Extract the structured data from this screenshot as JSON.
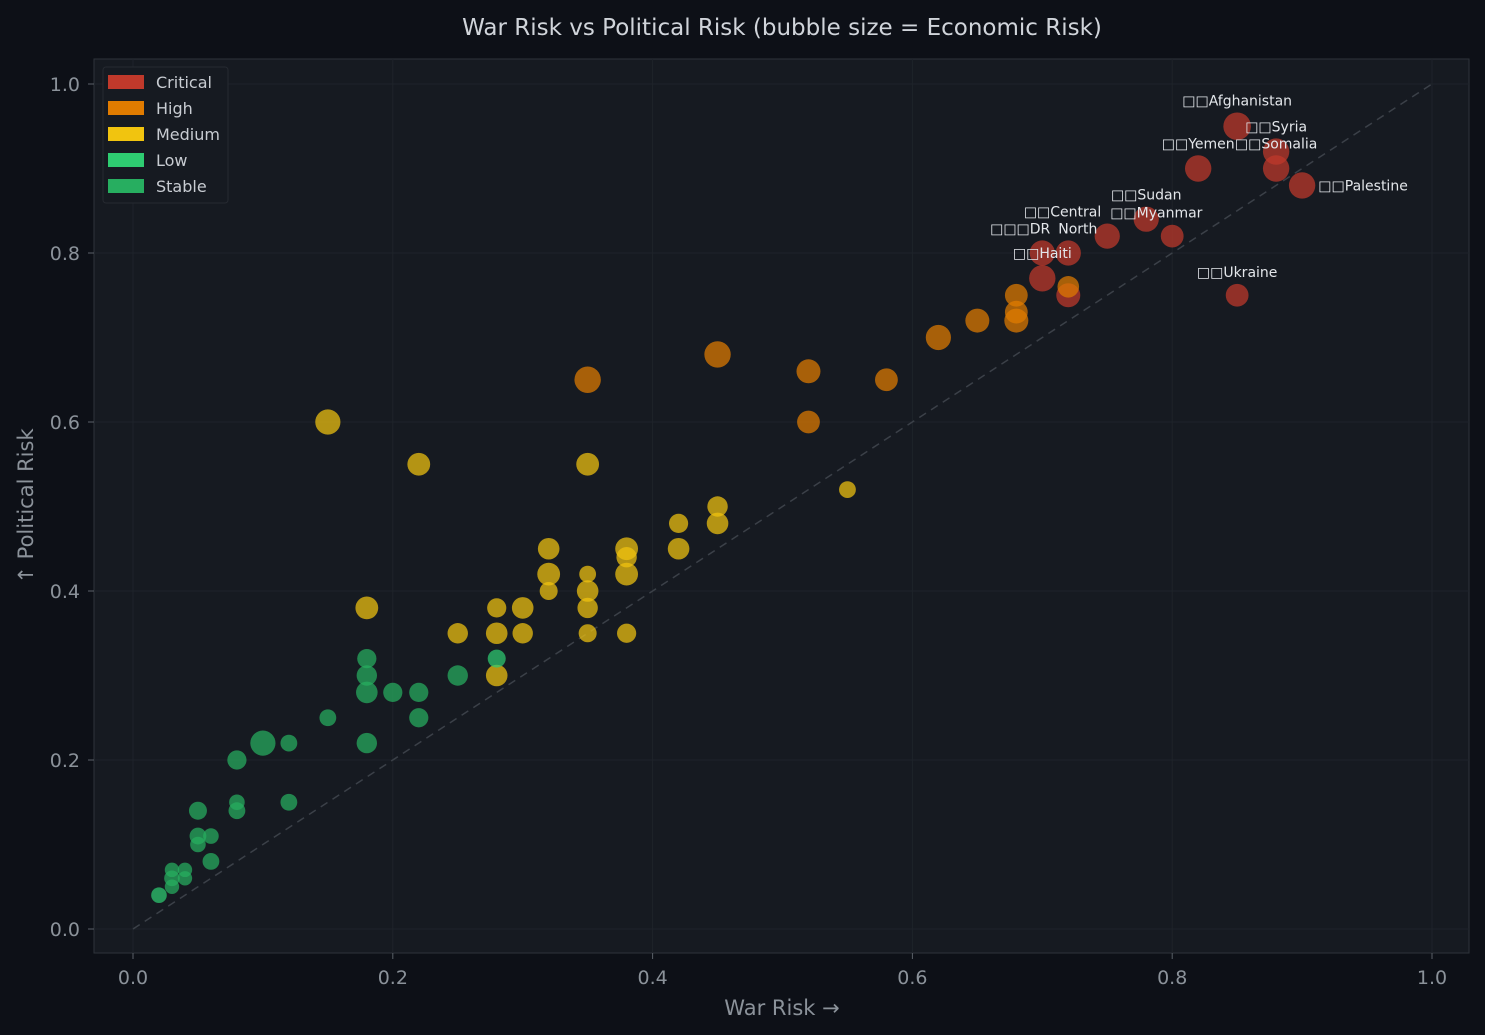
{
  "chart_data": {
    "type": "scatter",
    "title": "War Risk vs Political Risk (bubble size = Economic Risk)",
    "xlabel": "War Risk →",
    "ylabel": "↑ Political Risk",
    "xlim": [
      -0.03,
      1.03
    ],
    "ylim": [
      -0.03,
      1.03
    ],
    "xticks": [
      "0.0",
      "0.2",
      "0.4",
      "0.6",
      "0.8",
      "1.0"
    ],
    "yticks": [
      "0.0",
      "0.2",
      "0.4",
      "0.6",
      "0.8",
      "1.0"
    ],
    "grid": true,
    "reference_line": "diagonal y = x (dashed)",
    "legend_position": "top-left",
    "categories": [
      {
        "name": "Critical",
        "color": "#c0392b"
      },
      {
        "name": "High",
        "color": "#e07b00"
      },
      {
        "name": "Medium",
        "color": "#f1c40f"
      },
      {
        "name": "Low",
        "color": "#2ecc71"
      },
      {
        "name": "Stable",
        "color": "#27ae60"
      }
    ],
    "points": [
      {
        "x": 0.85,
        "y": 0.95,
        "size": 0.9,
        "cat": "Critical",
        "label": "□□Afghanistan"
      },
      {
        "x": 0.88,
        "y": 0.92,
        "size": 0.85,
        "cat": "Critical",
        "label": "□□Syria"
      },
      {
        "x": 0.88,
        "y": 0.9,
        "size": 0.85,
        "cat": "Critical",
        "label": "□□Somalia"
      },
      {
        "x": 0.82,
        "y": 0.9,
        "size": 0.85,
        "cat": "Critical",
        "label": "□□Yemen"
      },
      {
        "x": 0.9,
        "y": 0.88,
        "size": 0.85,
        "cat": "Critical",
        "label": "□□Palestine"
      },
      {
        "x": 0.78,
        "y": 0.84,
        "size": 0.8,
        "cat": "Critical",
        "label": "□□Sudan"
      },
      {
        "x": 0.75,
        "y": 0.82,
        "size": 0.8,
        "cat": "Critical",
        "label": "□□Central"
      },
      {
        "x": 0.8,
        "y": 0.82,
        "size": 0.7,
        "cat": "Critical",
        "label": "□□Myanmar"
      },
      {
        "x": 0.7,
        "y": 0.8,
        "size": 0.8,
        "cat": "Critical",
        "label": "□□□DR"
      },
      {
        "x": 0.72,
        "y": 0.8,
        "size": 0.8,
        "cat": "Critical",
        "label": "North"
      },
      {
        "x": 0.7,
        "y": 0.77,
        "size": 0.85,
        "cat": "Critical",
        "label": "□□Haiti"
      },
      {
        "x": 0.85,
        "y": 0.75,
        "size": 0.7,
        "cat": "Critical",
        "label": "□□Ukraine"
      },
      {
        "x": 0.72,
        "y": 0.75,
        "size": 0.75,
        "cat": "Critical"
      },
      {
        "x": 0.68,
        "y": 0.75,
        "size": 0.7,
        "cat": "High"
      },
      {
        "x": 0.72,
        "y": 0.76,
        "size": 0.65,
        "cat": "High"
      },
      {
        "x": 0.68,
        "y": 0.73,
        "size": 0.7,
        "cat": "High"
      },
      {
        "x": 0.68,
        "y": 0.72,
        "size": 0.75,
        "cat": "High"
      },
      {
        "x": 0.65,
        "y": 0.72,
        "size": 0.75,
        "cat": "High"
      },
      {
        "x": 0.62,
        "y": 0.7,
        "size": 0.8,
        "cat": "High"
      },
      {
        "x": 0.58,
        "y": 0.65,
        "size": 0.7,
        "cat": "High"
      },
      {
        "x": 0.52,
        "y": 0.66,
        "size": 0.75,
        "cat": "High"
      },
      {
        "x": 0.52,
        "y": 0.6,
        "size": 0.7,
        "cat": "High"
      },
      {
        "x": 0.45,
        "y": 0.68,
        "size": 0.85,
        "cat": "High"
      },
      {
        "x": 0.35,
        "y": 0.65,
        "size": 0.85,
        "cat": "High"
      },
      {
        "x": 0.15,
        "y": 0.6,
        "size": 0.8,
        "cat": "Medium"
      },
      {
        "x": 0.22,
        "y": 0.55,
        "size": 0.7,
        "cat": "Medium"
      },
      {
        "x": 0.35,
        "y": 0.55,
        "size": 0.7,
        "cat": "Medium"
      },
      {
        "x": 0.55,
        "y": 0.52,
        "size": 0.45,
        "cat": "Medium"
      },
      {
        "x": 0.45,
        "y": 0.5,
        "size": 0.6,
        "cat": "Medium"
      },
      {
        "x": 0.45,
        "y": 0.48,
        "size": 0.65,
        "cat": "Medium"
      },
      {
        "x": 0.42,
        "y": 0.48,
        "size": 0.55,
        "cat": "Medium"
      },
      {
        "x": 0.42,
        "y": 0.45,
        "size": 0.65,
        "cat": "Medium"
      },
      {
        "x": 0.38,
        "y": 0.45,
        "size": 0.7,
        "cat": "Medium"
      },
      {
        "x": 0.38,
        "y": 0.44,
        "size": 0.6,
        "cat": "Medium"
      },
      {
        "x": 0.38,
        "y": 0.42,
        "size": 0.7,
        "cat": "Medium"
      },
      {
        "x": 0.32,
        "y": 0.45,
        "size": 0.65,
        "cat": "Medium"
      },
      {
        "x": 0.32,
        "y": 0.42,
        "size": 0.7,
        "cat": "Medium"
      },
      {
        "x": 0.32,
        "y": 0.4,
        "size": 0.5,
        "cat": "Medium"
      },
      {
        "x": 0.35,
        "y": 0.42,
        "size": 0.45,
        "cat": "Medium"
      },
      {
        "x": 0.35,
        "y": 0.4,
        "size": 0.65,
        "cat": "Medium"
      },
      {
        "x": 0.35,
        "y": 0.38,
        "size": 0.6,
        "cat": "Medium"
      },
      {
        "x": 0.35,
        "y": 0.35,
        "size": 0.5,
        "cat": "Medium"
      },
      {
        "x": 0.38,
        "y": 0.35,
        "size": 0.55,
        "cat": "Medium"
      },
      {
        "x": 0.18,
        "y": 0.38,
        "size": 0.7,
        "cat": "Medium"
      },
      {
        "x": 0.28,
        "y": 0.38,
        "size": 0.55,
        "cat": "Medium"
      },
      {
        "x": 0.3,
        "y": 0.38,
        "size": 0.65,
        "cat": "Medium"
      },
      {
        "x": 0.25,
        "y": 0.35,
        "size": 0.6,
        "cat": "Medium"
      },
      {
        "x": 0.28,
        "y": 0.35,
        "size": 0.65,
        "cat": "Medium"
      },
      {
        "x": 0.3,
        "y": 0.35,
        "size": 0.6,
        "cat": "Medium"
      },
      {
        "x": 0.28,
        "y": 0.3,
        "size": 0.65,
        "cat": "Medium"
      },
      {
        "x": 0.28,
        "y": 0.32,
        "size": 0.5,
        "cat": "Low"
      },
      {
        "x": 0.18,
        "y": 0.32,
        "size": 0.55,
        "cat": "Stable"
      },
      {
        "x": 0.18,
        "y": 0.3,
        "size": 0.6,
        "cat": "Stable"
      },
      {
        "x": 0.18,
        "y": 0.28,
        "size": 0.65,
        "cat": "Stable"
      },
      {
        "x": 0.2,
        "y": 0.28,
        "size": 0.55,
        "cat": "Stable"
      },
      {
        "x": 0.22,
        "y": 0.28,
        "size": 0.55,
        "cat": "Stable"
      },
      {
        "x": 0.25,
        "y": 0.3,
        "size": 0.6,
        "cat": "Stable"
      },
      {
        "x": 0.22,
        "y": 0.25,
        "size": 0.55,
        "cat": "Stable"
      },
      {
        "x": 0.15,
        "y": 0.25,
        "size": 0.45,
        "cat": "Stable"
      },
      {
        "x": 0.18,
        "y": 0.22,
        "size": 0.6,
        "cat": "Stable"
      },
      {
        "x": 0.12,
        "y": 0.22,
        "size": 0.45,
        "cat": "Stable"
      },
      {
        "x": 0.1,
        "y": 0.22,
        "size": 0.8,
        "cat": "Stable"
      },
      {
        "x": 0.08,
        "y": 0.2,
        "size": 0.55,
        "cat": "Stable"
      },
      {
        "x": 0.08,
        "y": 0.15,
        "size": 0.4,
        "cat": "Stable"
      },
      {
        "x": 0.08,
        "y": 0.14,
        "size": 0.45,
        "cat": "Stable"
      },
      {
        "x": 0.12,
        "y": 0.15,
        "size": 0.45,
        "cat": "Stable"
      },
      {
        "x": 0.05,
        "y": 0.14,
        "size": 0.5,
        "cat": "Stable"
      },
      {
        "x": 0.05,
        "y": 0.11,
        "size": 0.45,
        "cat": "Stable"
      },
      {
        "x": 0.06,
        "y": 0.11,
        "size": 0.4,
        "cat": "Stable"
      },
      {
        "x": 0.05,
        "y": 0.1,
        "size": 0.4,
        "cat": "Stable"
      },
      {
        "x": 0.06,
        "y": 0.08,
        "size": 0.45,
        "cat": "Stable"
      },
      {
        "x": 0.03,
        "y": 0.07,
        "size": 0.35,
        "cat": "Stable"
      },
      {
        "x": 0.04,
        "y": 0.07,
        "size": 0.35,
        "cat": "Stable"
      },
      {
        "x": 0.03,
        "y": 0.06,
        "size": 0.4,
        "cat": "Stable"
      },
      {
        "x": 0.04,
        "y": 0.06,
        "size": 0.35,
        "cat": "Stable"
      },
      {
        "x": 0.03,
        "y": 0.05,
        "size": 0.35,
        "cat": "Stable"
      },
      {
        "x": 0.02,
        "y": 0.04,
        "size": 0.4,
        "cat": "Low"
      }
    ]
  }
}
